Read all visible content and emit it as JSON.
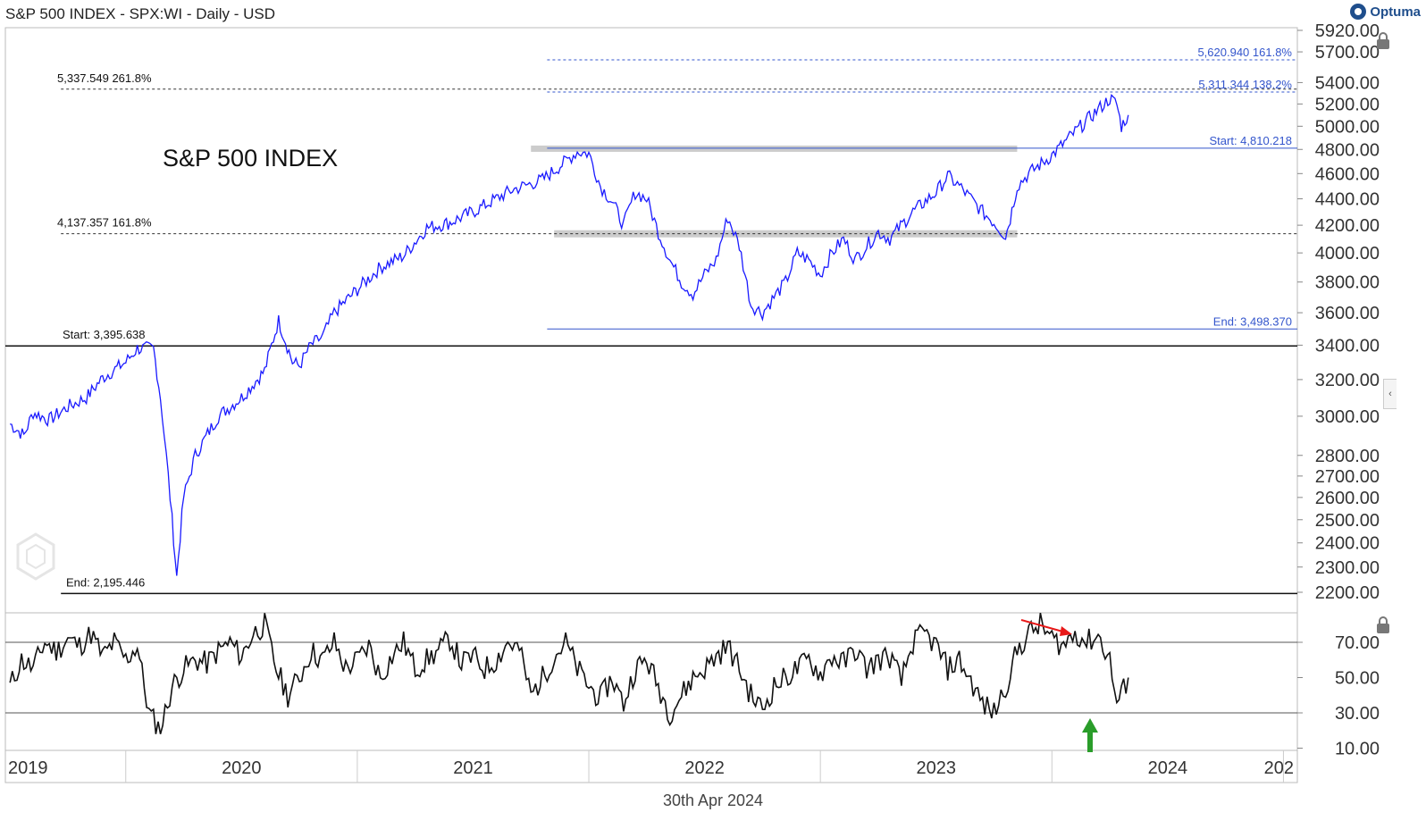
{
  "header": {
    "title": "S&P 500 INDEX - SPX:WI - Daily - USD",
    "brand": "Optuma"
  },
  "footer": {
    "date": "30th Apr 2024"
  },
  "colors": {
    "price": "#1a1aff",
    "fib": "#3355cc",
    "rsi": "#111111",
    "zone": "#cccccc",
    "arrow_down": "#e81818",
    "arrow_up": "#2a9d2a"
  },
  "chart_data": [
    {
      "type": "line",
      "name": "price-panel",
      "title": "S&P 500 INDEX",
      "yscale": "log",
      "ylim": [
        2150,
        5920
      ],
      "xlim": [
        2019.48,
        2025.06
      ],
      "y_ticks": [
        "5920.00",
        "5700.00",
        "5400.00",
        "5200.00",
        "5000.00",
        "4800.00",
        "4600.00",
        "4400.00",
        "4200.00",
        "4000.00",
        "3800.00",
        "3600.00",
        "3400.00",
        "3200.00",
        "3000.00",
        "2800.00",
        "2700.00",
        "2600.00",
        "2500.00",
        "2400.00",
        "2300.00",
        "2200.00"
      ],
      "x_ticks": [
        "2019",
        "2020",
        "2021",
        "2022",
        "2023",
        "2024",
        "202"
      ],
      "series": [
        {
          "x": [
            2019.5,
            2019.56,
            2019.6,
            2019.67,
            2019.75,
            2019.83,
            2019.9,
            2020.0,
            2020.05,
            2020.12,
            2020.15,
            2020.2,
            2020.22,
            2020.25,
            2020.3,
            2020.4,
            2020.5,
            2020.6,
            2020.66,
            2020.72,
            2020.75,
            2020.8,
            2020.85,
            2020.9,
            2021.0,
            2021.1,
            2021.2,
            2021.3,
            2021.4,
            2021.5,
            2021.6,
            2021.67,
            2021.72,
            2021.8,
            2021.9,
            2021.95,
            2022.0,
            2022.05,
            2022.1,
            2022.15,
            2022.2,
            2022.25,
            2022.3,
            2022.35,
            2022.4,
            2022.45,
            2022.5,
            2022.55,
            2022.6,
            2022.65,
            2022.7,
            2022.75,
            2022.8,
            2022.85,
            2022.9,
            2022.95,
            2023.0,
            2023.05,
            2023.1,
            2023.15,
            2023.2,
            2023.25,
            2023.3,
            2023.4,
            2023.5,
            2023.55,
            2023.6,
            2023.65,
            2023.7,
            2023.75,
            2023.8,
            2023.82,
            2023.85,
            2023.9,
            2024.0,
            2024.1,
            2024.2,
            2024.25,
            2024.28,
            2024.3,
            2024.33
          ],
          "y": [
            2960,
            2900,
            3020,
            2980,
            3050,
            3100,
            3210,
            3300,
            3380,
            3380,
            3100,
            2500,
            2260,
            2600,
            2800,
            3000,
            3100,
            3250,
            3550,
            3300,
            3280,
            3400,
            3450,
            3600,
            3750,
            3900,
            3980,
            4180,
            4220,
            4300,
            4400,
            4470,
            4500,
            4550,
            4700,
            4780,
            4766,
            4500,
            4380,
            4200,
            4450,
            4400,
            4150,
            3950,
            3800,
            3720,
            3850,
            3950,
            4260,
            4050,
            3650,
            3600,
            3700,
            3800,
            4000,
            3950,
            3850,
            4000,
            4100,
            3950,
            4050,
            4150,
            4100,
            4300,
            4450,
            4580,
            4500,
            4400,
            4300,
            4220,
            4120,
            4250,
            4500,
            4600,
            4750,
            4950,
            5150,
            5250,
            5200,
            5000,
            5100
          ]
        }
      ],
      "annotations": [
        {
          "label": "5,620.940",
          "pct": "161.8%",
          "y": 5620.94
        },
        {
          "label": "5,311.344",
          "pct": "138.2%",
          "y": 5311.344
        },
        {
          "label": "5,337.549",
          "pct": "261.8%",
          "y": 5337.549
        },
        {
          "label": "4,137.357",
          "pct": "161.8%",
          "y": 4137.357
        },
        {
          "label": "Start:",
          "value": "4,810.218",
          "y": 4810.218
        },
        {
          "label": "End:",
          "value": "3,498.370",
          "y": 3498.37
        },
        {
          "label": "Start:",
          "value": "3,395.638",
          "y": 3395.638
        },
        {
          "label": "End:",
          "value": "2,195.446",
          "y": 2195.446
        }
      ],
      "grid": false
    },
    {
      "type": "line",
      "name": "rsi-panel",
      "ylim": [
        10,
        100
      ],
      "y_ticks": [
        "70.00",
        "50.00",
        "30.00",
        "10.00"
      ],
      "levels": [
        70,
        30
      ],
      "series": [
        {
          "x": [
            2019.5,
            2019.55,
            2019.6,
            2019.65,
            2019.7,
            2019.75,
            2019.8,
            2019.85,
            2019.9,
            2019.95,
            2020.0,
            2020.05,
            2020.1,
            2020.15,
            2020.2,
            2020.25,
            2020.3,
            2020.35,
            2020.4,
            2020.45,
            2020.5,
            2020.55,
            2020.6,
            2020.65,
            2020.7,
            2020.75,
            2020.8,
            2020.85,
            2020.9,
            2020.95,
            2021.0,
            2021.05,
            2021.1,
            2021.15,
            2021.2,
            2021.25,
            2021.3,
            2021.35,
            2021.4,
            2021.45,
            2021.5,
            2021.55,
            2021.6,
            2021.65,
            2021.7,
            2021.75,
            2021.8,
            2021.85,
            2021.9,
            2021.95,
            2022.0,
            2022.05,
            2022.1,
            2022.15,
            2022.2,
            2022.25,
            2022.3,
            2022.35,
            2022.4,
            2022.45,
            2022.5,
            2022.55,
            2022.6,
            2022.65,
            2022.7,
            2022.75,
            2022.8,
            2022.85,
            2022.9,
            2022.95,
            2023.0,
            2023.05,
            2023.1,
            2023.15,
            2023.2,
            2023.25,
            2023.3,
            2023.35,
            2023.4,
            2023.45,
            2023.5,
            2023.55,
            2023.6,
            2023.65,
            2023.7,
            2023.75,
            2023.8,
            2023.85,
            2023.9,
            2023.95,
            2024.0,
            2024.05,
            2024.1,
            2024.15,
            2024.2,
            2024.25,
            2024.28,
            2024.3,
            2024.33
          ],
          "y": [
            45,
            60,
            55,
            70,
            65,
            72,
            68,
            75,
            62,
            70,
            60,
            68,
            30,
            20,
            45,
            55,
            60,
            58,
            65,
            70,
            62,
            75,
            80,
            55,
            40,
            50,
            65,
            60,
            70,
            55,
            60,
            68,
            50,
            62,
            70,
            55,
            60,
            65,
            72,
            58,
            62,
            55,
            60,
            70,
            66,
            40,
            50,
            62,
            70,
            55,
            45,
            38,
            50,
            35,
            55,
            60,
            45,
            30,
            40,
            50,
            55,
            62,
            68,
            55,
            40,
            32,
            45,
            50,
            55,
            60,
            52,
            62,
            58,
            66,
            55,
            60,
            62,
            48,
            70,
            75,
            68,
            55,
            60,
            48,
            35,
            30,
            45,
            65,
            75,
            80,
            72,
            68,
            76,
            70,
            74,
            60,
            35,
            40,
            50
          ]
        }
      ]
    }
  ],
  "labels": {
    "chart_title": "S&P 500 INDEX",
    "fib_5620": "5,620.940    161.8%",
    "fib_5311": "5,311.344    138.2%",
    "fib_5337": "5,337.549    261.8%",
    "fib_4137": "4,137.357    161.8%",
    "start_4810": "Start:     4,810.218",
    "end_3498": "End:     3,498.370",
    "start_3395": "Start:     3,395.638",
    "end_2195": "End:     2,195.446"
  }
}
